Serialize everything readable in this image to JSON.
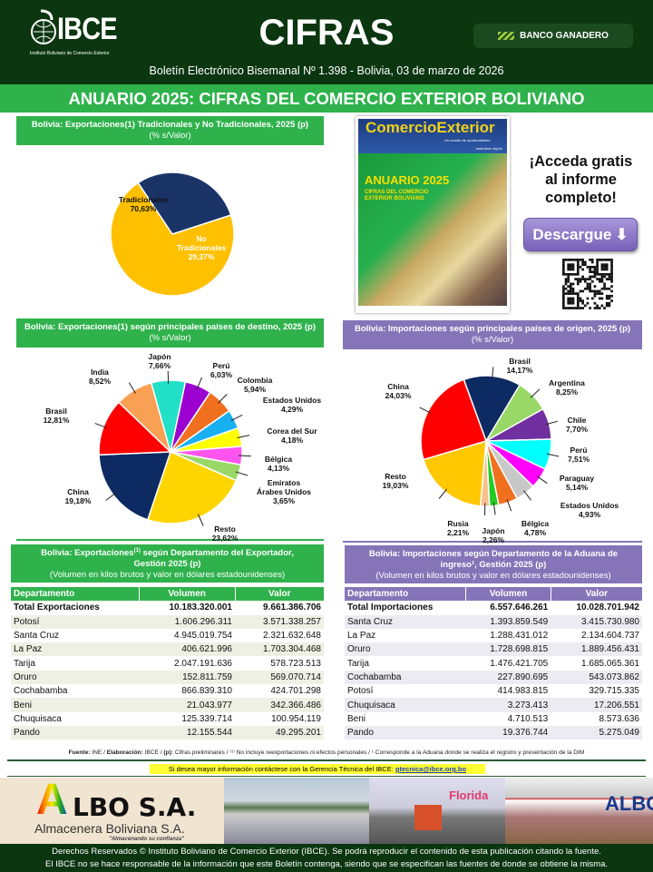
{
  "header": {
    "logo_text": "IBCE",
    "logo_subtitle": "Instituto Boliviano de Comercio Exterior",
    "title": "CIFRAS",
    "sponsor": "BANCO GANADERO",
    "subtitle": "Boletín Electrónico Bisemanal Nº 1.398 - Bolivia, 03 de marzo de 2026"
  },
  "banner_title": "ANUARIO 2025: CIFRAS DEL COMERCIO EXTERIOR BOLIVIANO",
  "promo": {
    "cover_title": "ComercioExterior",
    "cover_tagline": "Un mundo de oportunidades",
    "cover_url": "www.ibce.org.bo",
    "cover_headline": "ANUARIO 2025",
    "cover_sub": "CIFRAS DEL COMERCIO EXTERIOR BOLIVIANO",
    "cta_line1": "¡Acceda gratis",
    "cta_line2": "al informe",
    "cta_line3": "completo!",
    "button": "Descargue"
  },
  "colors": {
    "header_bg": "#0b3610",
    "green": "#2fb24c",
    "purple": "#8575b8"
  },
  "chart_data": [
    {
      "type": "pie",
      "title": "Bolivia: Exportaciones(1) Tradicionales y No Tradicionales, 2025 (p)",
      "subtitle": "(% s/Valor)",
      "labels": [
        "Tradicionales",
        "No Tradicionales"
      ],
      "values": [
        70.63,
        29.37
      ],
      "value_labels": [
        "70,63%",
        "29,37%"
      ],
      "colors": [
        "#ffc000",
        "#1b3468"
      ]
    },
    {
      "type": "pie",
      "title": "Bolivia: Exportaciones(1) según principales países de destino, 2025 (p)",
      "subtitle": "(% s/Valor)",
      "labels": [
        "Perú",
        "Colombia",
        "Estados Unidos",
        "Corea del Sur",
        "Bélgica",
        "Emiratos Árabes Unidos",
        "Resto",
        "China",
        "Brasil",
        "India",
        "Japón"
      ],
      "values": [
        6.03,
        5.94,
        4.29,
        4.18,
        4.13,
        3.65,
        23.62,
        19.18,
        12.81,
        8.52,
        7.66
      ],
      "value_labels": [
        "6,03%",
        "5,94%",
        "4,29%",
        "4,18%",
        "4,13%",
        "3,65%",
        "23,62%",
        "19,18%",
        "12,81%",
        "8,52%",
        "7,66%"
      ],
      "colors": [
        "#9b00d0",
        "#f07020",
        "#18b0f0",
        "#ffff00",
        "#ff55ee",
        "#99d866",
        "#ffd500",
        "#0d2a63",
        "#ff0000",
        "#f9a055",
        "#22e0c8"
      ]
    },
    {
      "type": "pie",
      "title": "Bolivia: Importaciones según principales países de origen, 2025 (p)",
      "subtitle": "(% s/Valor)",
      "labels": [
        "Brasil",
        "Argentina",
        "Chile",
        "Perú",
        "Paraguay",
        "Estados Unidos",
        "Bélgica",
        "Japón",
        "Rusia",
        "Resto",
        "China"
      ],
      "values": [
        14.17,
        8.25,
        7.7,
        7.51,
        5.14,
        4.93,
        4.78,
        2.26,
        2.21,
        19.03,
        24.03
      ],
      "value_labels": [
        "14,17%",
        "8,25%",
        "7,70%",
        "7,51%",
        "5,14%",
        "4,93%",
        "4,78%",
        "2,26%",
        "2,21%",
        "19,03%",
        "24,03%"
      ],
      "colors": [
        "#0d2a63",
        "#99d866",
        "#7030a0",
        "#00ffff",
        "#ff00ff",
        "#c8c8c8",
        "#f07020",
        "#22cc22",
        "#f8c090",
        "#ffc800",
        "#ff0000"
      ]
    }
  ],
  "tables": {
    "exports": {
      "title_a": "Bolivia: Exportaciones",
      "title_sup": "(1)",
      "title_b": " según Departamento del Exportador,",
      "title_c": "Gestión 2025 (p)",
      "note": "(Volumen en kilos brutos y valor en dólares estadounidenses)",
      "columns": [
        "Departamento",
        "Volumen",
        "Valor"
      ],
      "rows": [
        [
          "Total Exportaciones",
          "10.183.320.001",
          "9.661.386.706"
        ],
        [
          "Potosí",
          "1.606.296.311",
          "3.571.338.257"
        ],
        [
          "Santa Cruz",
          "4.945.019.754",
          "2.321.632.648"
        ],
        [
          "La Paz",
          "406.621.996",
          "1.703.304.468"
        ],
        [
          "Tarija",
          "2.047.191.636",
          "578.723.513"
        ],
        [
          "Oruro",
          "152.811.759",
          "569.070.714"
        ],
        [
          "Cochabamba",
          "866.839.310",
          "424.701.298"
        ],
        [
          "Beni",
          "21.043.977",
          "342.366.486"
        ],
        [
          "Chuquisaca",
          "125.339.714",
          "100.954.119"
        ],
        [
          "Pando",
          "12.155.544",
          "49.295.201"
        ]
      ]
    },
    "imports": {
      "title_a": "Bolivia: Importaciones según Departamento de la Aduana de",
      "title_c": "ingreso¹, Gestión 2025 (p)",
      "note": "(Volumen en kilos brutos y valor en dólares estadounidenses)",
      "columns": [
        "Departamento",
        "Volumen",
        "Valor"
      ],
      "rows": [
        [
          "Total Importaciones",
          "6.557.646.261",
          "10.028.701.942"
        ],
        [
          "Santa Cruz",
          "1.393.859.549",
          "3.415.730.980"
        ],
        [
          "La Paz",
          "1.288.431.012",
          "2.134.604.737"
        ],
        [
          "Oruro",
          "1.728.698.815",
          "1.889.456.431"
        ],
        [
          "Tarija",
          "1.476.421.705",
          "1.685.065.361"
        ],
        [
          "Cochabamba",
          "227.890.695",
          "543.073.862"
        ],
        [
          "Potosí",
          "414.983.815",
          "329.715.335"
        ],
        [
          "Chuquisaca",
          "3.273.413",
          "17.206.551"
        ],
        [
          "Beni",
          "4.710.513",
          "8.573.636"
        ],
        [
          "Pando",
          "19.376.744",
          "5.275.049"
        ]
      ]
    }
  },
  "footnote": {
    "fuente_label": "Fuente:",
    "fuente": " INE / ",
    "elab_label": "Elaboración:",
    "elab": " IBCE / ",
    "p_label": "(p):",
    "rest": " Cifras preliminares / ⁽¹⁾ No incluye reexportaciones ni efectos personales / ¹ Corresponde a la Aduana donde se realiza el registro y presentación de la DIM"
  },
  "contact": {
    "text": "Si desea mayor información contáctese con la Gerencia Técnica del IBCE: ",
    "email": "gtecnica@ibce.org.bo"
  },
  "ad": {
    "brand": "LBO S.A.",
    "brand_initial": "A",
    "company": "Almacenera Boliviana S.A.",
    "slogan": "\"Almacenando su confianza\"",
    "photo_text_1": "Florida",
    "photo_text_2": "ALBO"
  },
  "footer": {
    "line1": "Derechos Reservados © Instituto Boliviano de Comercio Exterior (IBCE). Se podrá reproducir el contenido de esta publicación citando la fuente.",
    "line2": "El IBCE no se hace responsable de la información que este Boletín contenga, siendo que se especifican las fuentes de donde se obtiene la misma."
  }
}
